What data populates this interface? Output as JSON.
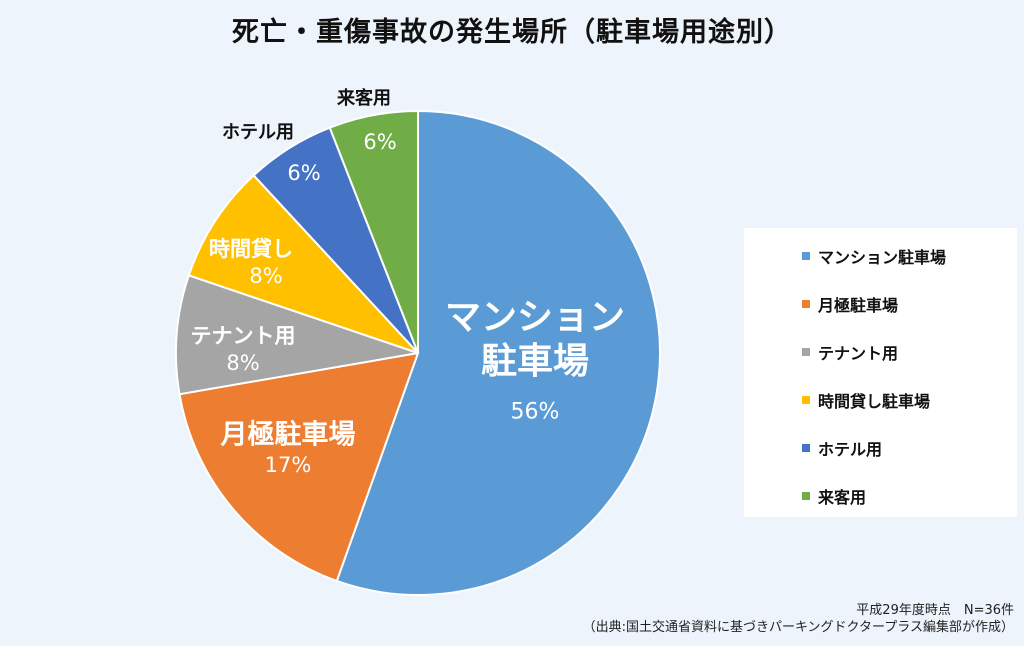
{
  "title": "死亡・重傷事故の発生場所（駐車場用途別）",
  "chart_data": {
    "type": "pie",
    "title": "死亡・重傷事故の発生場所（駐車場用途別）",
    "start": "top",
    "direction": "clockwise",
    "legend_position": "right",
    "slices": [
      {
        "name": "マンション駐車場",
        "label": "マンション駐車場",
        "value": 56,
        "pct": "56%",
        "color": "#5b9bd5"
      },
      {
        "name": "月極駐車場",
        "label": "月極駐車場",
        "value": 17,
        "pct": "17%",
        "color": "#ed7d31"
      },
      {
        "name": "テナント用",
        "label": "テナント用",
        "value": 8,
        "pct": "8%",
        "color": "#a5a5a5"
      },
      {
        "name": "時間貸し駐車場",
        "label": "時間貸し",
        "value": 8,
        "pct": "8%",
        "color": "#ffc000"
      },
      {
        "name": "ホテル用",
        "label": "ホテル用",
        "value": 6,
        "pct": "6%",
        "color": "#4472c4"
      },
      {
        "name": "来客用",
        "label": "来客用",
        "value": 6,
        "pct": "6%",
        "color": "#70ad47"
      }
    ]
  },
  "note": {
    "line1": "平成29年度時点　N=36件",
    "line2": "（出典:国土交通省資料に基づきパーキングドクタープラス編集部が作成）"
  }
}
